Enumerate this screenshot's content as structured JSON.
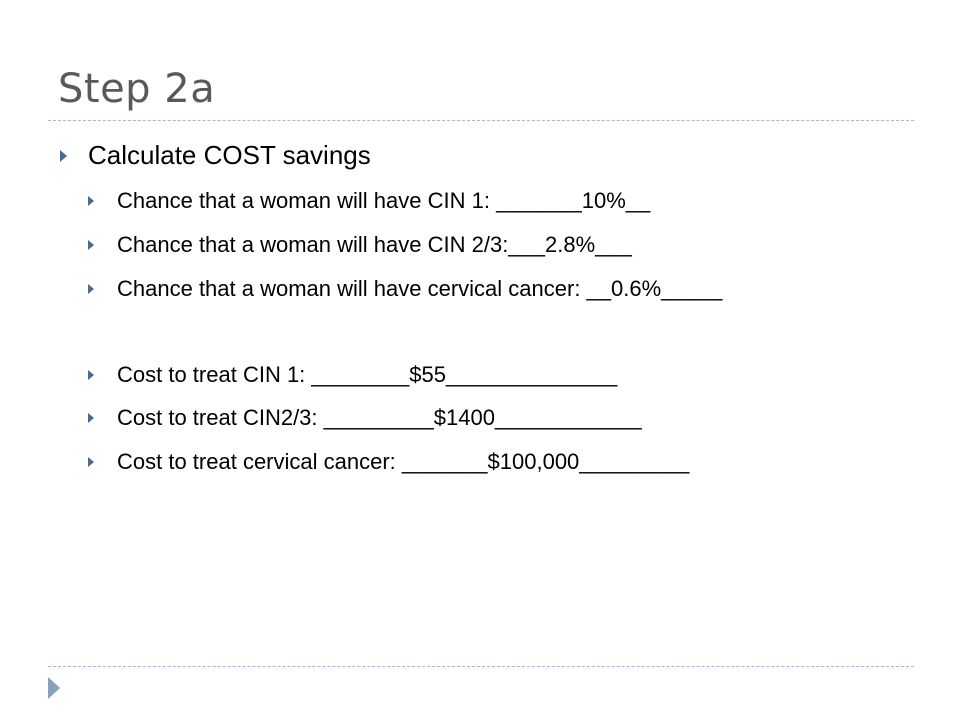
{
  "slide": {
    "title": "Step 2a",
    "heading": "Calculate COST savings",
    "items": [
      "Chance that a woman will have CIN 1: _______10%__",
      "Chance that a woman will have CIN 2/3:___2.8%___",
      "Chance that a woman will have cervical cancer: __0.6%_____",
      "Cost to treat CIN 1: ________$55______________",
      "Cost to treat CIN2/3:  _________$1400____________",
      "Cost to treat cervical cancer: _______$100,000_________"
    ]
  },
  "colors": {
    "title": "#595959",
    "bullet_arrow": "#4a6a8f",
    "divider": "#a9b7c9",
    "footer_arrow": "#8aa0b8"
  },
  "icons": {
    "bullet": "triangle-right-icon",
    "footer": "triangle-right-icon"
  }
}
